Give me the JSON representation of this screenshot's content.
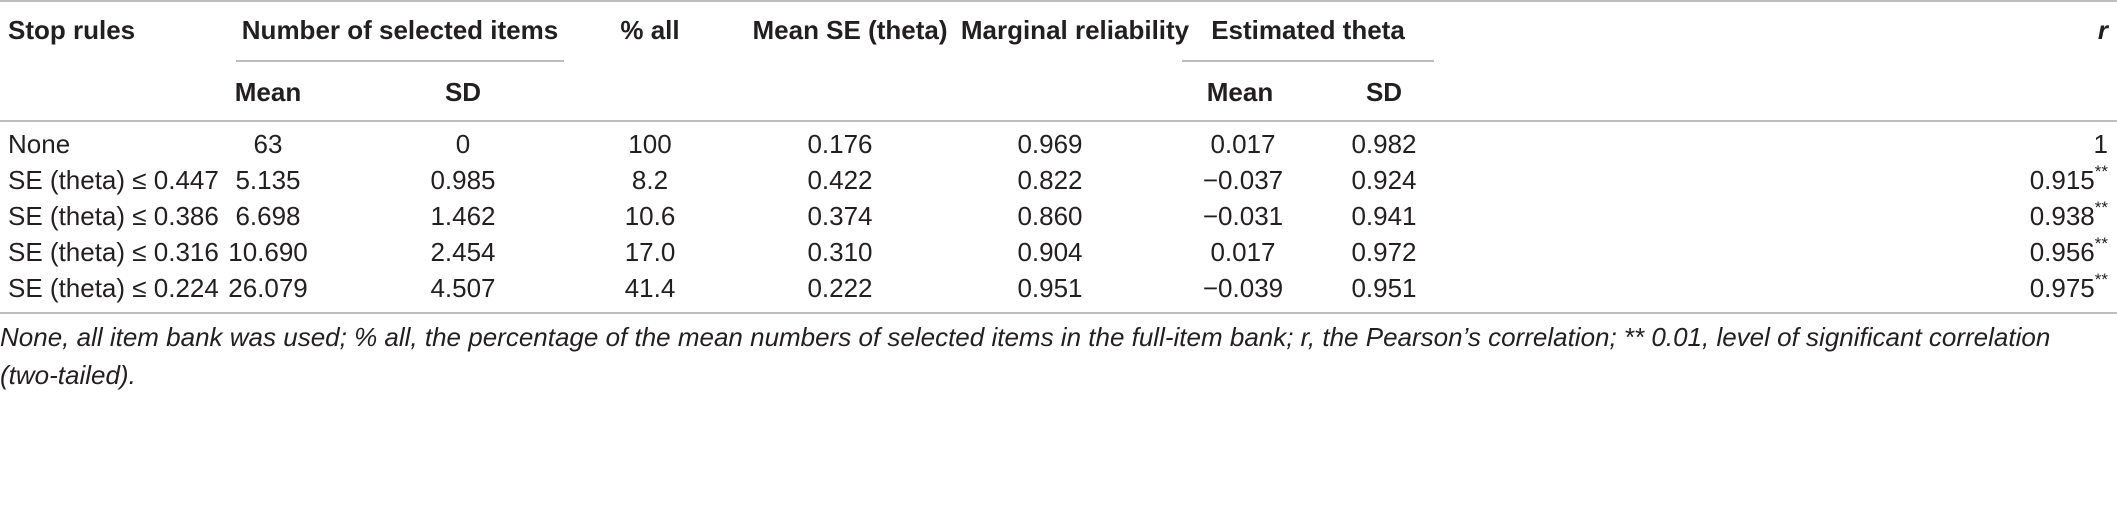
{
  "table": {
    "headers": {
      "stop_rules": "Stop rules",
      "number_selected": "Number of selected items",
      "mean": "Mean",
      "sd": "SD",
      "pct_all": "% all",
      "mean_se": "Mean SE (theta)",
      "marginal_reliability": "Marginal reliability",
      "estimated_theta": "Estimated theta",
      "theta_mean": "Mean",
      "theta_sd": "SD",
      "r": "r"
    },
    "rows": [
      {
        "rule": "None",
        "mean": "63",
        "sd": "0",
        "pct": "100",
        "mean_se": "0.176",
        "reliability": "0.969",
        "theta_mean": "0.017",
        "theta_sd": "0.982",
        "r": "1",
        "r_sig": ""
      },
      {
        "rule": "SE (theta) ≤ 0.447",
        "mean": "5.135",
        "sd": "0.985",
        "pct": "8.2",
        "mean_se": "0.422",
        "reliability": "0.822",
        "theta_mean": "−0.037",
        "theta_sd": "0.924",
        "r": "0.915",
        "r_sig": "**"
      },
      {
        "rule": "SE (theta) ≤ 0.386",
        "mean": "6.698",
        "sd": "1.462",
        "pct": "10.6",
        "mean_se": "0.374",
        "reliability": "0.860",
        "theta_mean": "−0.031",
        "theta_sd": "0.941",
        "r": "0.938",
        "r_sig": "**"
      },
      {
        "rule": "SE (theta) ≤ 0.316",
        "mean": "10.690",
        "sd": "2.454",
        "pct": "17.0",
        "mean_se": "0.310",
        "reliability": "0.904",
        "theta_mean": "0.017",
        "theta_sd": "0.972",
        "r": "0.956",
        "r_sig": "**"
      },
      {
        "rule": "SE (theta) ≤ 0.224",
        "mean": "26.079",
        "sd": "4.507",
        "pct": "41.4",
        "mean_se": "0.222",
        "reliability": "0.951",
        "theta_mean": "−0.039",
        "theta_sd": "0.951",
        "r": "0.975",
        "r_sig": "**"
      }
    ]
  },
  "footnote": "None, all item bank was used; % all, the percentage of the mean numbers of selected items in the full-item bank; r, the Pearson’s correlation; ** 0.01, level of significant correlation (two-tailed)."
}
